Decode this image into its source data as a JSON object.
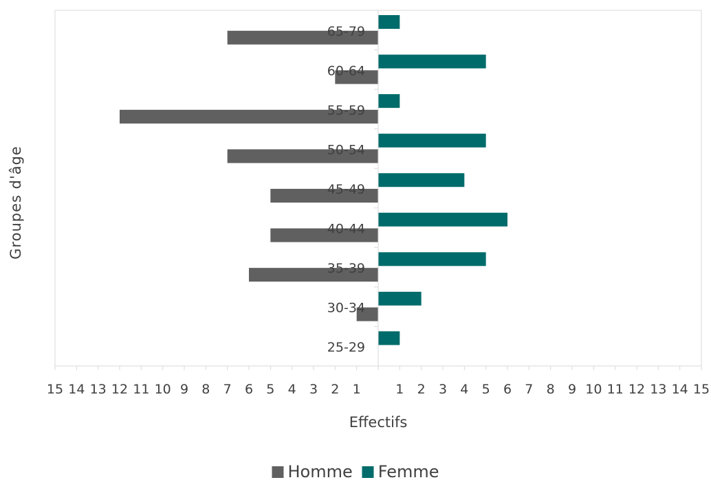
{
  "chart_data": {
    "type": "bar",
    "orientation": "horizontal",
    "layout": "population-pyramid",
    "title": "",
    "xlabel": "Effectifs",
    "ylabel": "Groupes d'âge",
    "categories": [
      "25-29",
      "30-34",
      "35-39",
      "40-44",
      "45-49",
      "50-54",
      "55-59",
      "60-64",
      "65-79"
    ],
    "series": [
      {
        "name": "Homme",
        "values": [
          0,
          1,
          6,
          5,
          5,
          7,
          12,
          2,
          7
        ],
        "color": "#606060",
        "side": "left"
      },
      {
        "name": "Femme",
        "values": [
          1,
          2,
          5,
          6,
          4,
          5,
          1,
          5,
          1
        ],
        "color": "#006b6b",
        "side": "right"
      }
    ],
    "x_tick_labels": [
      "15",
      "14",
      "13",
      "12",
      "11",
      "10",
      "9",
      "8",
      "7",
      "6",
      "5",
      "4",
      "3",
      "2",
      "1",
      "1",
      "2",
      "3",
      "4",
      "5",
      "6",
      "7",
      "8",
      "9",
      "10",
      "11",
      "12",
      "13",
      "14",
      "15"
    ],
    "xlim": [
      -15,
      15
    ],
    "grid": false,
    "legend_position": "bottom"
  }
}
